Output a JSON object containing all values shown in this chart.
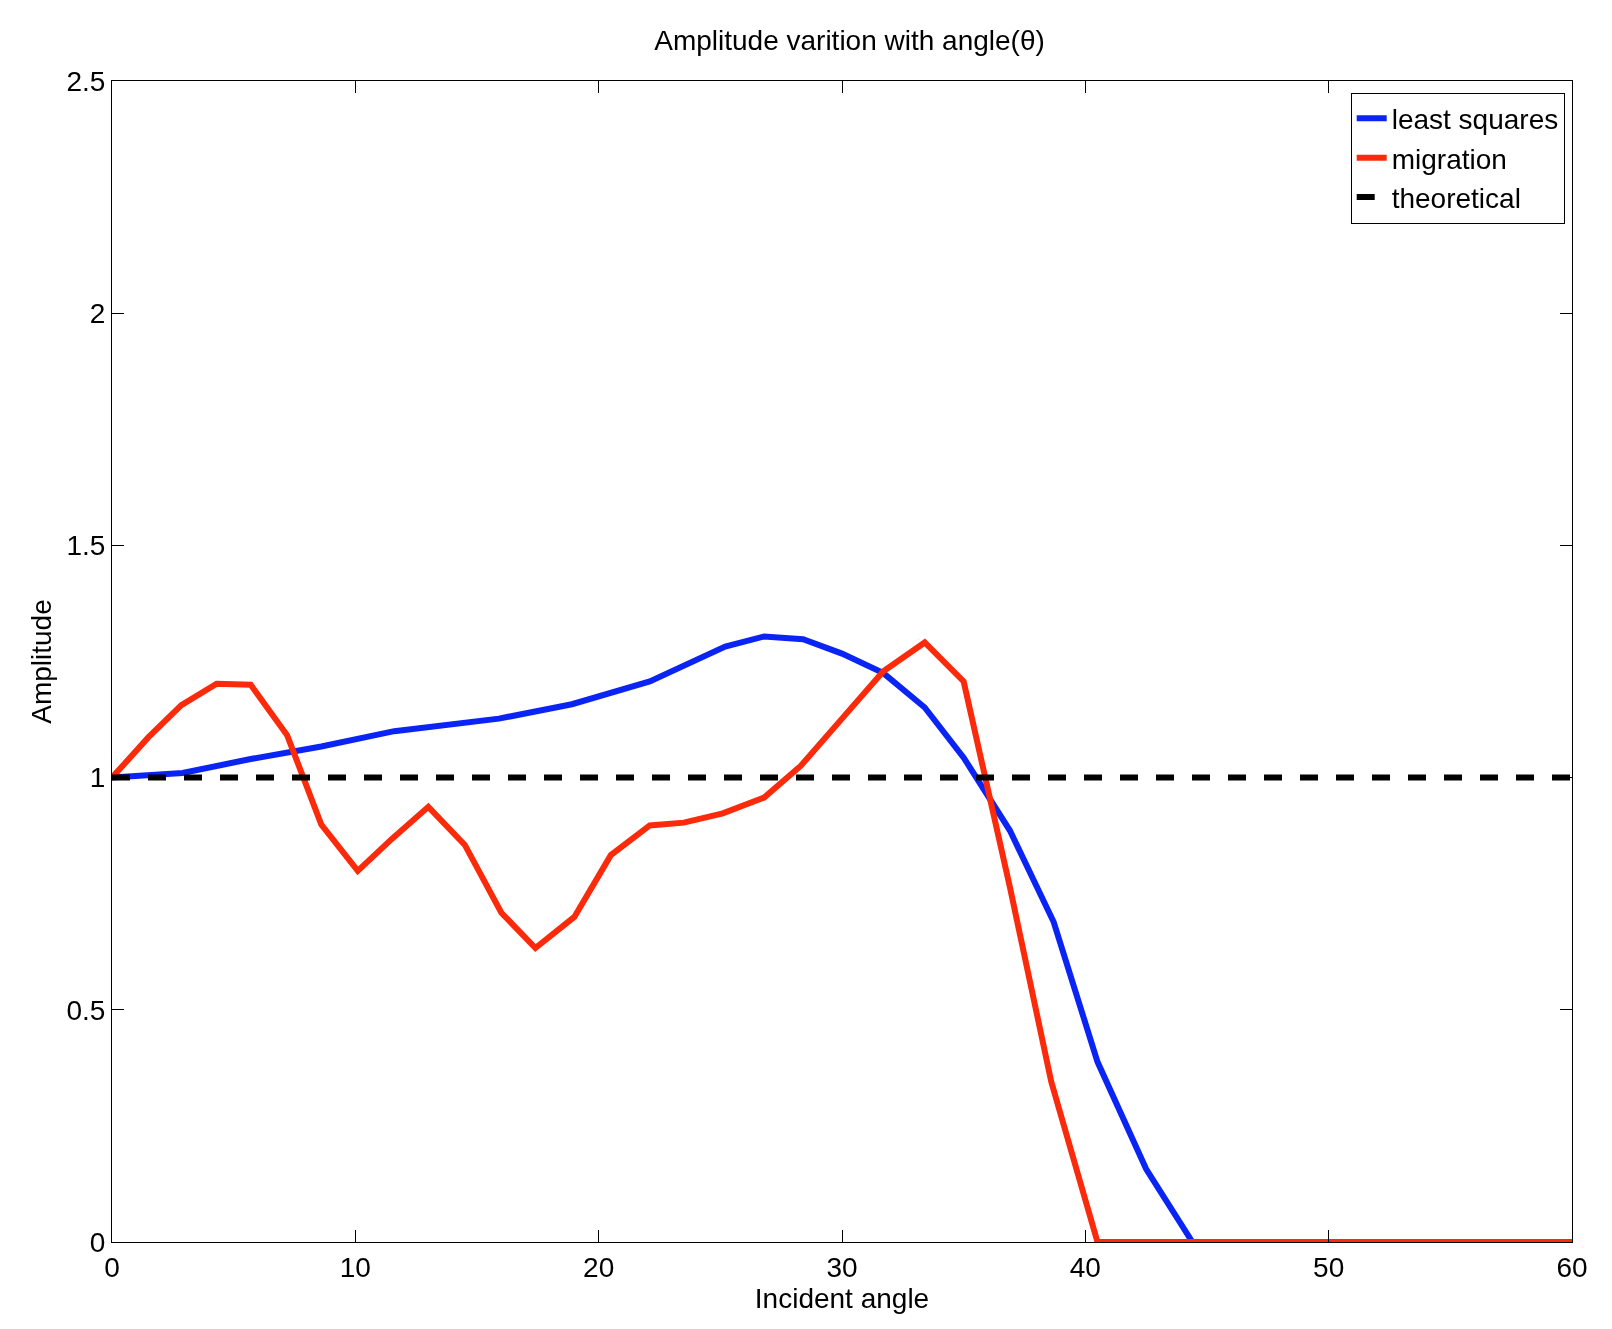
{
  "chart_data": {
    "type": "line",
    "title": "Amplitude varition with angle(θ)",
    "xlabel": "Incident angle",
    "ylabel": "Amplitude",
    "xlim": [
      0,
      60
    ],
    "xticks": [
      0,
      10,
      20,
      30,
      40,
      50,
      60
    ],
    "ylim": [
      0,
      2.5
    ],
    "yticks": [
      0,
      0.5,
      1,
      1.5,
      2,
      2.5
    ],
    "legend": "top right",
    "marker": "none",
    "series": [
      {
        "name": "least squares",
        "color": "#0a24f5",
        "line_style": "solid",
        "x": [
          0,
          2.9,
          5.7,
          8.6,
          11.6,
          15.9,
          18.9,
          22.1,
          25.2,
          26.8,
          28.4,
          30.0,
          31.7,
          33.4,
          35.0,
          36.9,
          38.7,
          40.5,
          42.5,
          44.4,
          60
        ],
        "values": [
          1.0,
          1.01,
          1.04,
          1.067,
          1.1,
          1.127,
          1.158,
          1.207,
          1.282,
          1.304,
          1.298,
          1.267,
          1.225,
          1.151,
          1.043,
          0.886,
          0.689,
          0.388,
          0.157,
          0,
          0
        ]
      },
      {
        "name": "migration",
        "color": "#fa2a0a",
        "line_style": "solid",
        "x": [
          0,
          1.5,
          2.85,
          4.3,
          5.7,
          7.2,
          8.6,
          10.1,
          11.5,
          13.0,
          14.5,
          16.0,
          17.4,
          19.0,
          20.5,
          22.1,
          23.5,
          25.1,
          26.8,
          28.3,
          30.0,
          31.7,
          33.4,
          35.0,
          36.9,
          38.6,
          40.5,
          60
        ],
        "values": [
          1.0,
          1.087,
          1.156,
          1.202,
          1.2,
          1.091,
          0.899,
          0.799,
          0.868,
          0.937,
          0.855,
          0.709,
          0.633,
          0.7,
          0.833,
          0.897,
          0.903,
          0.923,
          0.957,
          1.025,
          1.127,
          1.229,
          1.291,
          1.207,
          0.764,
          0.345,
          0,
          0
        ]
      },
      {
        "name": "theoretical",
        "color": "#000000",
        "line_style": "dashed",
        "x": [
          0,
          60
        ],
        "values": [
          1,
          1
        ]
      }
    ]
  }
}
